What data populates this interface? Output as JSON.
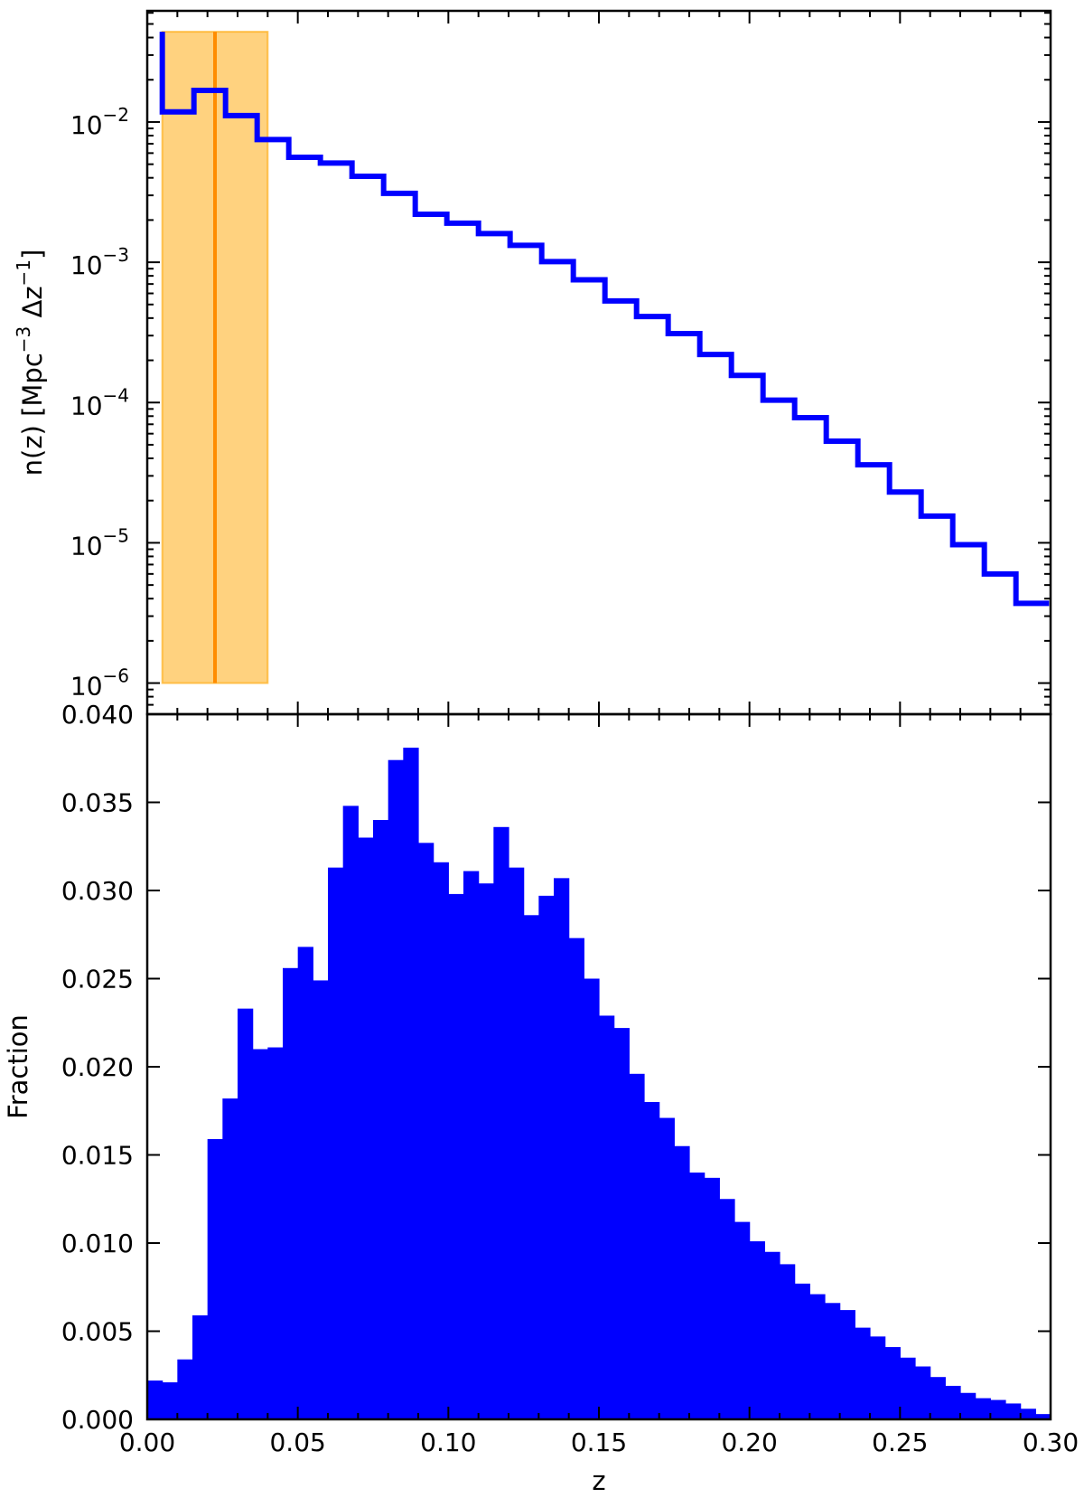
{
  "colors": {
    "histogram": "#0000ff",
    "band_fill": "#ffa500",
    "band_line": "#ff8c00"
  },
  "chart_data": [
    {
      "type": "line",
      "panel": "top",
      "drawstyle": "steps",
      "yscale": "log",
      "ylabel_prefix": "n(z) [Mpc",
      "ylabel_exp1": "−3",
      "ylabel_mid": " Δz",
      "ylabel_exp2": "−1",
      "ylabel_suffix": "]",
      "xlim": [
        0.0,
        0.3
      ],
      "ylim": [
        6e-07,
        0.062
      ],
      "yticks": [
        {
          "value": 1e-06,
          "base": "10",
          "exp": "−6"
        },
        {
          "value": 1e-05,
          "base": "10",
          "exp": "−5"
        },
        {
          "value": 0.0001,
          "base": "10",
          "exp": "−4"
        },
        {
          "value": 0.001,
          "base": "10",
          "exp": "−3"
        },
        {
          "value": 0.01,
          "base": "10",
          "exp": "−2"
        }
      ],
      "bin_edges": [
        0.005,
        0.0155,
        0.026,
        0.0365,
        0.047,
        0.0575,
        0.068,
        0.0785,
        0.089,
        0.0995,
        0.11,
        0.1205,
        0.131,
        0.1415,
        0.152,
        0.1625,
        0.173,
        0.1835,
        0.194,
        0.2045,
        0.215,
        0.2255,
        0.236,
        0.2465,
        0.257,
        0.2675,
        0.278,
        0.2885,
        0.2995
      ],
      "values": [
        0.0118,
        0.0168,
        0.0111,
        0.0075,
        0.0056,
        0.0051,
        0.0041,
        0.0031,
        0.0022,
        0.0019,
        0.0016,
        0.00132,
        0.00101,
        0.00075,
        0.00053,
        0.00041,
        0.00031,
        0.00022,
        0.000156,
        0.000104,
        7.8e-05,
        5.3e-05,
        3.6e-05,
        2.3e-05,
        1.55e-05,
        9.7e-06,
        6e-06,
        3.7e-06
      ],
      "first_spike_top": 0.044,
      "band": {
        "x0": 0.005,
        "x1": 0.04,
        "y0": 1e-06,
        "y1": 0.044,
        "center": 0.0225
      }
    },
    {
      "type": "bar",
      "panel": "bottom",
      "xlabel": "z",
      "ylabel": "Fraction",
      "xlim": [
        0.0,
        0.3
      ],
      "ylim": [
        0.0,
        0.04
      ],
      "xticks": [
        "0.00",
        "0.05",
        "0.10",
        "0.15",
        "0.20",
        "0.25",
        "0.30"
      ],
      "yticks": [
        "0.000",
        "0.005",
        "0.010",
        "0.015",
        "0.020",
        "0.025",
        "0.030",
        "0.035",
        "0.040"
      ],
      "bin_width": 0.005,
      "values": [
        0.0022,
        0.0021,
        0.0034,
        0.0059,
        0.0159,
        0.0182,
        0.0233,
        0.021,
        0.0211,
        0.0256,
        0.0268,
        0.0249,
        0.0313,
        0.0348,
        0.033,
        0.034,
        0.0374,
        0.0381,
        0.0327,
        0.0316,
        0.0298,
        0.0311,
        0.0304,
        0.0336,
        0.0313,
        0.0286,
        0.0297,
        0.0307,
        0.0273,
        0.025,
        0.0229,
        0.0222,
        0.0196,
        0.018,
        0.0171,
        0.0155,
        0.014,
        0.0137,
        0.0125,
        0.0112,
        0.0101,
        0.0095,
        0.0088,
        0.0077,
        0.0071,
        0.0066,
        0.0062,
        0.0052,
        0.0047,
        0.0041,
        0.0035,
        0.003,
        0.0024,
        0.0019,
        0.0015,
        0.0012,
        0.0011,
        0.0009,
        0.0006,
        0.0003
      ]
    }
  ]
}
